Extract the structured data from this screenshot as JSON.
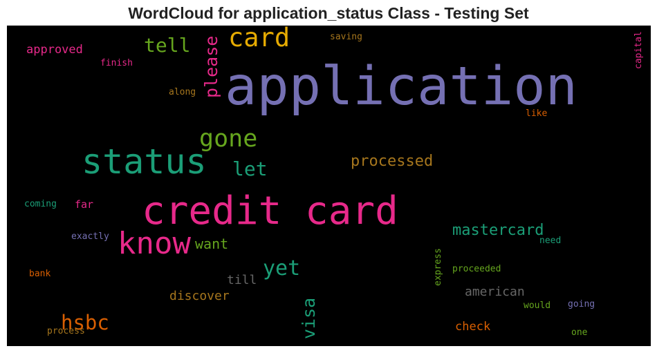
{
  "chart_data": {
    "type": "wordcloud",
    "title": "WordCloud for application_status Class - Testing Set",
    "background": "#000000",
    "words": [
      {
        "text": "application",
        "color": "#7570b3",
        "weight": 1.0,
        "orientation": "horizontal"
      },
      {
        "text": "credit card",
        "color": "#e7298a",
        "weight": 0.78,
        "orientation": "horizontal"
      },
      {
        "text": "status",
        "color": "#1b9e77",
        "weight": 0.7,
        "orientation": "horizontal"
      },
      {
        "text": "know",
        "color": "#e7298a",
        "weight": 0.62,
        "orientation": "horizontal"
      },
      {
        "text": "card",
        "color": "#e6ab02",
        "weight": 0.5,
        "orientation": "horizontal"
      },
      {
        "text": "gone",
        "color": "#66a61e",
        "weight": 0.47,
        "orientation": "horizontal"
      },
      {
        "text": "hsbc",
        "color": "#d95f02",
        "weight": 0.4,
        "orientation": "horizontal"
      },
      {
        "text": "yet",
        "color": "#1b9e77",
        "weight": 0.4,
        "orientation": "horizontal"
      },
      {
        "text": "tell",
        "color": "#66a61e",
        "weight": 0.38,
        "orientation": "horizontal"
      },
      {
        "text": "please",
        "color": "#e7298a",
        "weight": 0.37,
        "orientation": "vertical"
      },
      {
        "text": "let",
        "color": "#1b9e77",
        "weight": 0.37,
        "orientation": "horizontal"
      },
      {
        "text": "visa",
        "color": "#1b9e77",
        "weight": 0.34,
        "orientation": "vertical"
      },
      {
        "text": "processed",
        "color": "#a6761d",
        "weight": 0.3,
        "orientation": "horizontal"
      },
      {
        "text": "mastercard",
        "color": "#1b9e77",
        "weight": 0.3,
        "orientation": "horizontal"
      },
      {
        "text": "want",
        "color": "#66a61e",
        "weight": 0.27,
        "orientation": "horizontal"
      },
      {
        "text": "discover",
        "color": "#a6761d",
        "weight": 0.25,
        "orientation": "horizontal"
      },
      {
        "text": "american",
        "color": "#666666",
        "weight": 0.24,
        "orientation": "horizontal"
      },
      {
        "text": "till",
        "color": "#666666",
        "weight": 0.24,
        "orientation": "horizontal"
      },
      {
        "text": "check",
        "color": "#d95f02",
        "weight": 0.23,
        "orientation": "horizontal"
      },
      {
        "text": "approved",
        "color": "#e7298a",
        "weight": 0.22,
        "orientation": "horizontal"
      },
      {
        "text": "far",
        "color": "#e7298a",
        "weight": 0.2,
        "orientation": "horizontal"
      },
      {
        "text": "like",
        "color": "#d95f02",
        "weight": 0.17,
        "orientation": "horizontal"
      },
      {
        "text": "finish",
        "color": "#e7298a",
        "weight": 0.17,
        "orientation": "horizontal"
      },
      {
        "text": "along",
        "color": "#a6761d",
        "weight": 0.17,
        "orientation": "horizontal"
      },
      {
        "text": "saving",
        "color": "#a6761d",
        "weight": 0.17,
        "orientation": "horizontal"
      },
      {
        "text": "capital",
        "color": "#e7298a",
        "weight": 0.17,
        "orientation": "vertical"
      },
      {
        "text": "coming",
        "color": "#1b9e77",
        "weight": 0.17,
        "orientation": "horizontal"
      },
      {
        "text": "exactly",
        "color": "#7570b3",
        "weight": 0.17,
        "orientation": "horizontal"
      },
      {
        "text": "need",
        "color": "#1b9e77",
        "weight": 0.17,
        "orientation": "horizontal"
      },
      {
        "text": "express",
        "color": "#66a61e",
        "weight": 0.17,
        "orientation": "vertical"
      },
      {
        "text": "proceeded",
        "color": "#66a61e",
        "weight": 0.17,
        "orientation": "horizontal"
      },
      {
        "text": "bank",
        "color": "#d95f02",
        "weight": 0.17,
        "orientation": "horizontal"
      },
      {
        "text": "would",
        "color": "#66a61e",
        "weight": 0.17,
        "orientation": "horizontal"
      },
      {
        "text": "going",
        "color": "#7570b3",
        "weight": 0.17,
        "orientation": "horizontal"
      },
      {
        "text": "process",
        "color": "#a6761d",
        "weight": 0.17,
        "orientation": "horizontal"
      },
      {
        "text": "one",
        "color": "#66a61e",
        "weight": 0.17,
        "orientation": "horizontal"
      }
    ]
  }
}
